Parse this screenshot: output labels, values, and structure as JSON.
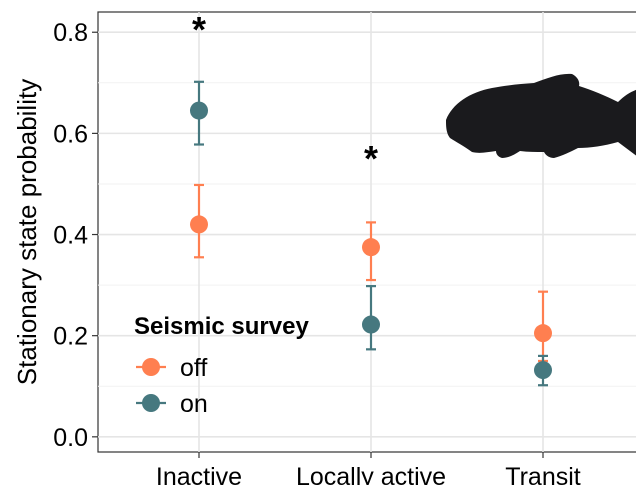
{
  "chart_data": {
    "type": "scatter",
    "title": "",
    "xlabel": "",
    "ylabel": "Stationary state probability",
    "categories": [
      "Inactive",
      "Locally active",
      "Transit"
    ],
    "ylim": [
      -0.03,
      0.84
    ],
    "yticks": [
      "0.0",
      "0.2",
      "0.4",
      "0.6",
      "0.8"
    ],
    "ytick_values": [
      0.0,
      0.2,
      0.4,
      0.6,
      0.8
    ],
    "grid": true,
    "legend": {
      "title": "Seismic survey",
      "position": "bottom-left",
      "entries": [
        "off",
        "on"
      ]
    },
    "series": [
      {
        "name": "off",
        "color": "#FF7F50",
        "values": [
          0.42,
          0.375,
          0.205
        ],
        "lower": [
          0.355,
          0.31,
          0.15
        ],
        "upper": [
          0.498,
          0.424,
          0.287
        ]
      },
      {
        "name": "on",
        "color": "#46787F",
        "values": [
          0.645,
          0.222,
          0.132
        ],
        "lower": [
          0.578,
          0.173,
          0.102
        ],
        "upper": [
          0.702,
          0.298,
          0.16
        ]
      }
    ],
    "annotations": [
      {
        "text": "*",
        "category": "Inactive",
        "y": 0.82
      },
      {
        "text": "*",
        "category": "Locally active",
        "y": 0.565
      }
    ],
    "image": {
      "name": "fish-silhouette-icon",
      "color": "#1a1a1d"
    }
  }
}
